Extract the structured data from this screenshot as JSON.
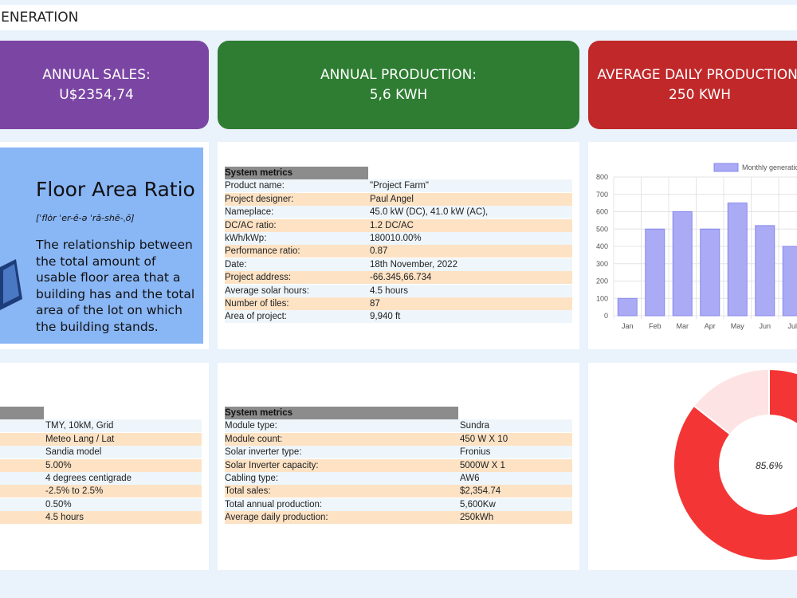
{
  "header": {
    "title": "GENERATION"
  },
  "cards": [
    {
      "label": "ANNUAL SALES:",
      "value": "U$2354,74",
      "color": "#7b46a3"
    },
    {
      "label": "ANNUAL PRODUCTION:",
      "value": "5,6 KWH",
      "color": "#2e7d32"
    },
    {
      "label": "AVERAGE DAILY PRODUCTION:",
      "value": "250 KWH",
      "color": "#c0282a"
    }
  ],
  "info": {
    "title": "Floor Area Ratio",
    "pronunciation": "[ˈflȯr ˈer-ē-ə ˈrā-shē-ˌō]",
    "text": "The relationship between the total amount of usable floor area that a building has and the total area of the lot on which the building stands."
  },
  "tables": [
    {
      "header": "System metrics",
      "rows": [
        [
          "Product name:",
          "\"Project Farm\""
        ],
        [
          "Project designer:",
          "Paul Angel"
        ],
        [
          "Nameplace:",
          "45.0 kW (DC), 41.0 kW (AC),"
        ],
        [
          "DC/AC ratio:",
          "1.2 DC/AC"
        ],
        [
          "kWh/kWp:",
          "180010.00%"
        ],
        [
          "Performance ratio:",
          "0.87"
        ],
        [
          "Date:",
          "18th November, 2022"
        ],
        [
          "Project address:",
          "-66.345,66.734"
        ],
        [
          "Average solar hours:",
          "4.5 hours"
        ],
        [
          "Number of tiles:",
          "87"
        ],
        [
          "Area of project:",
          "9,940 ft"
        ]
      ]
    },
    {
      "values": [
        "TMY, 10kM, Grid",
        "Meteo Lang / Lat",
        "Sandia model",
        "5.00%",
        "4 degrees centigrade",
        "-2.5% to 2.5%",
        "0.50%",
        "4.5 hours"
      ]
    },
    {
      "header": "System metrics",
      "rows": [
        [
          "Module type:",
          "Sundra"
        ],
        [
          "Module count:",
          "450 W X 10"
        ],
        [
          "Solar inverter type:",
          "Fronius"
        ],
        [
          "Solar Inverter capacity:",
          "5000W X 1"
        ],
        [
          "Cabling type:",
          "AW6"
        ],
        [
          "Total sales:",
          "$2,354.74"
        ],
        [
          "Total annual production:",
          "5,600Kw"
        ],
        [
          "Average daily production:",
          "250kWh"
        ]
      ]
    }
  ],
  "chart_data": [
    {
      "type": "bar",
      "categories": [
        "Jan",
        "Feb",
        "Mar",
        "Apr",
        "May",
        "Jun",
        "Jul"
      ],
      "series": [
        {
          "name": "Monthly generation",
          "color": "#aaaaf5",
          "values": [
            100,
            500,
            600,
            500,
            650,
            520,
            400
          ]
        }
      ],
      "ylim": [
        0,
        800
      ],
      "yticks": [
        0,
        100,
        200,
        300,
        400,
        500,
        600,
        700,
        800
      ],
      "grid": true
    },
    {
      "type": "doughnut",
      "values": [
        85.6,
        14.4
      ],
      "colors": [
        "#f43535",
        "#fde3e3"
      ],
      "center_label": "85.6%"
    }
  ]
}
